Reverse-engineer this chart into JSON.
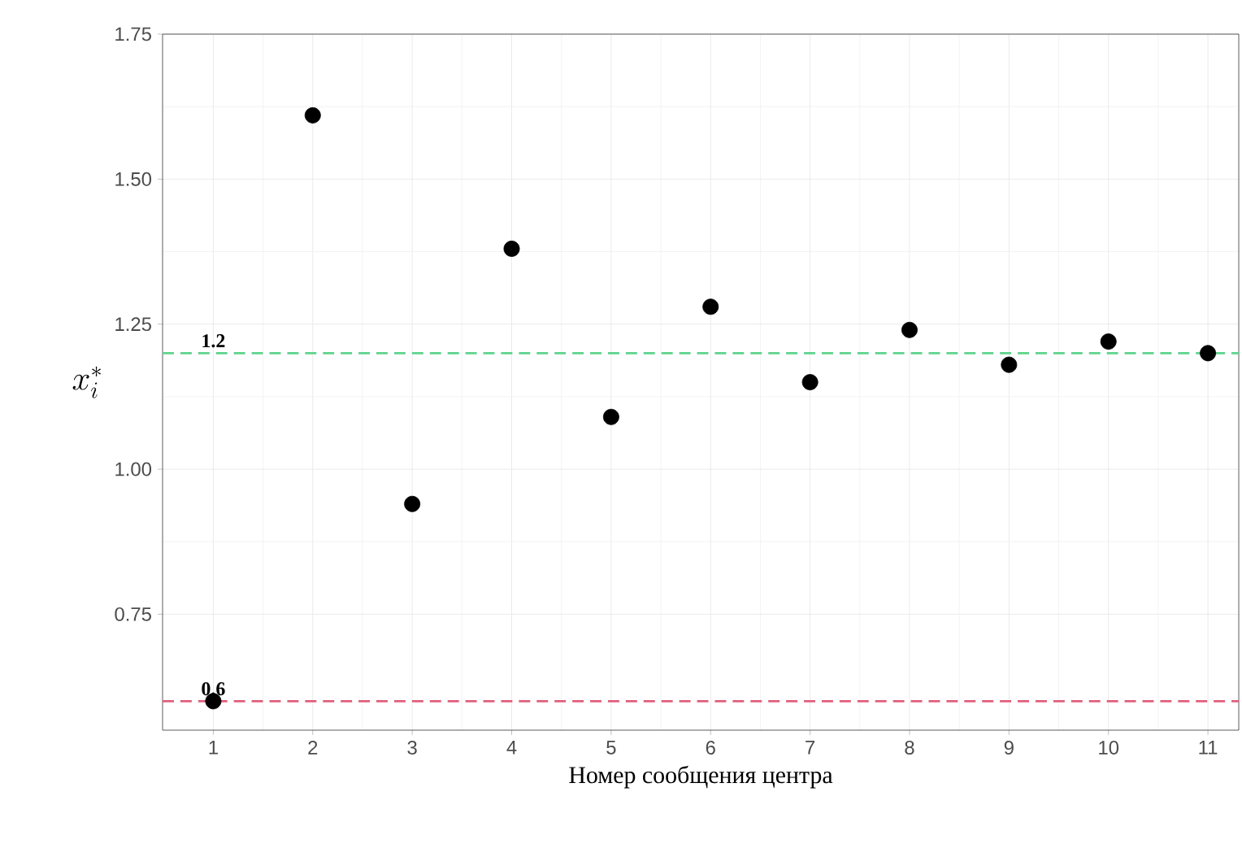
{
  "chart_data": {
    "type": "scatter",
    "xlabel": "Номер сообщения центра",
    "ylabel": "x_i^*",
    "x": [
      1,
      2,
      3,
      4,
      5,
      6,
      7,
      8,
      9,
      10,
      11
    ],
    "series": [
      {
        "color": "#000000",
        "values": [
          0.6,
          1.61,
          0.94,
          1.38,
          1.09,
          1.28,
          1.15,
          1.24,
          1.18,
          1.22,
          1.2
        ]
      }
    ],
    "xlim": [
      0.49,
      11.31
    ],
    "ylim": [
      0.55,
      1.75
    ],
    "xticks": [
      1,
      2,
      3,
      4,
      5,
      6,
      7,
      8,
      9,
      10,
      11
    ],
    "yticks": [
      {
        "value": 0.75,
        "label": "0.75"
      },
      {
        "value": 1,
        "label": "1.00"
      },
      {
        "value": 1.25,
        "label": "1.25"
      },
      {
        "value": 1.5,
        "label": "1.50"
      },
      {
        "value": 1.75,
        "label": "1.75"
      }
    ],
    "ref_lines": [
      {
        "axis": "y",
        "value": 1.2,
        "label": "1.2",
        "color": "#5fd38d",
        "line_style": "dashed"
      },
      {
        "axis": "y",
        "value": 0.6,
        "label": "0.6",
        "color": "#e0607e",
        "line_style": "dashed"
      }
    ],
    "grid": true,
    "marker": "circle"
  }
}
